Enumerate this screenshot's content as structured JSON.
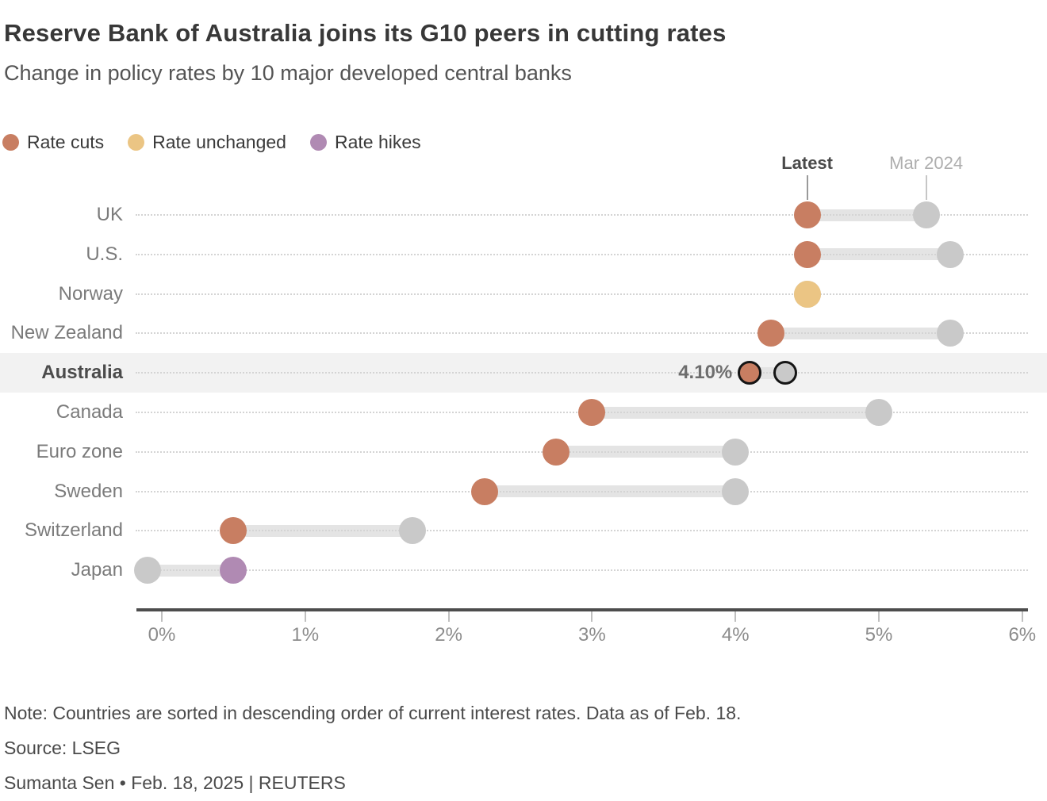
{
  "chart_data": {
    "type": "dumbbell",
    "title": "Reserve Bank of Australia joins its G10 peers in cutting rates",
    "subtitle": "Change in policy rates by 10 major developed central banks",
    "unit": "%",
    "legend": [
      {
        "id": "cut",
        "label": "Rate cuts",
        "color": "#c87e62"
      },
      {
        "id": "unchanged",
        "label": "Rate unchanged",
        "color": "#ebc584"
      },
      {
        "id": "hike",
        "label": "Rate hikes",
        "color": "#b08ab3"
      }
    ],
    "annotations": {
      "latest_label": "Latest",
      "previous_label": "Mar 2024",
      "latest_pointer_value": 4.5,
      "previous_pointer_value": 5.33
    },
    "x_axis": {
      "min": 0,
      "max": 6,
      "ticks": [
        {
          "value": 0,
          "label": "0%"
        },
        {
          "value": 1,
          "label": "1%"
        },
        {
          "value": 2,
          "label": "2%"
        },
        {
          "value": 3,
          "label": "3%"
        },
        {
          "value": 4,
          "label": "4%"
        },
        {
          "value": 5,
          "label": "5%"
        },
        {
          "value": 6,
          "label": "6%"
        }
      ]
    },
    "series": [
      {
        "country": "UK",
        "latest": 4.5,
        "mar_2024": 5.33,
        "change": "cut"
      },
      {
        "country": "U.S.",
        "latest": 4.5,
        "mar_2024": 5.5,
        "change": "cut"
      },
      {
        "country": "Norway",
        "latest": 4.5,
        "mar_2024": 4.5,
        "change": "unchanged"
      },
      {
        "country": "New Zealand",
        "latest": 4.25,
        "mar_2024": 5.5,
        "change": "cut"
      },
      {
        "country": "Australia",
        "latest": 4.1,
        "mar_2024": 4.35,
        "change": "cut",
        "highlight": true,
        "value_label": "4.10%"
      },
      {
        "country": "Canada",
        "latest": 3.0,
        "mar_2024": 5.0,
        "change": "cut"
      },
      {
        "country": "Euro zone",
        "latest": 2.75,
        "mar_2024": 4.0,
        "change": "cut"
      },
      {
        "country": "Sweden",
        "latest": 2.25,
        "mar_2024": 4.0,
        "change": "cut"
      },
      {
        "country": "Switzerland",
        "latest": 0.5,
        "mar_2024": 1.75,
        "change": "cut"
      },
      {
        "country": "Japan",
        "latest": 0.5,
        "mar_2024": -0.1,
        "change": "hike"
      }
    ],
    "colors": {
      "cut": "#c87e62",
      "unchanged": "#ebc584",
      "hike": "#b08ab3",
      "previous_dot": "#c9c9c9",
      "connector": "#e4e4e4",
      "highlight_band": "#f2f2f2"
    }
  },
  "footer": {
    "note": "Note: Countries are sorted in descending order of current interest rates. Data as of Feb. 18.",
    "source": "Source: LSEG",
    "byline": "Sumanta Sen • Feb. 18, 2025 | REUTERS"
  }
}
